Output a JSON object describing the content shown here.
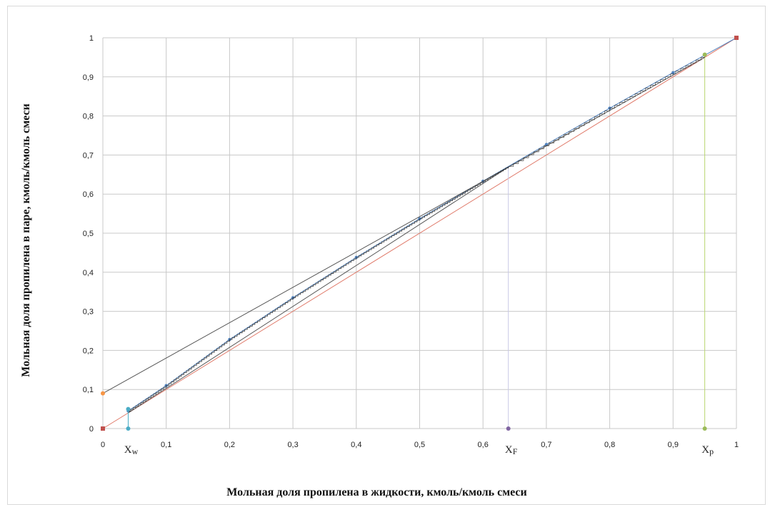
{
  "chart_data": {
    "type": "scatter",
    "title": "",
    "xlabel": "Мольная доля пропилена в жидкости, кмоль/кмоль смеси",
    "ylabel": "Мольная доля пропилена в паре, кмоль/кмоль смеси",
    "xlim": [
      0,
      1
    ],
    "ylim": [
      0,
      1
    ],
    "grid": true,
    "legend": "none",
    "x_ticks": [
      "0",
      "0,1",
      "0,2",
      "0,3",
      "0,4",
      "0,5",
      "0,6",
      "0,7",
      "0,8",
      "0,9",
      "1"
    ],
    "y_ticks": [
      "0",
      "0,1",
      "0,2",
      "0,3",
      "0,4",
      "0,5",
      "0,6",
      "0,7",
      "0,8",
      "0,9",
      "1"
    ],
    "x_tick_values": [
      0,
      0.1,
      0.2,
      0.3,
      0.4,
      0.5,
      0.6,
      0.7,
      0.8,
      0.9,
      1
    ],
    "y_tick_values": [
      0,
      0.1,
      0.2,
      0.3,
      0.4,
      0.5,
      0.6,
      0.7,
      0.8,
      0.9,
      1
    ],
    "series": [
      {
        "type": "line",
        "color": "#e07a6a",
        "points": [
          [
            0,
            0
          ],
          [
            1,
            1
          ]
        ]
      },
      {
        "type": "line",
        "color": "#4f81bd",
        "points": [
          [
            0.04,
            0.045
          ],
          [
            0.1,
            0.11
          ],
          [
            0.2,
            0.228
          ],
          [
            0.3,
            0.335
          ],
          [
            0.4,
            0.438
          ],
          [
            0.5,
            0.537
          ],
          [
            0.6,
            0.633
          ],
          [
            0.7,
            0.727
          ],
          [
            0.8,
            0.82
          ],
          [
            0.9,
            0.911
          ],
          [
            1,
            1
          ]
        ]
      },
      {
        "type": "line",
        "color": "#555555",
        "points": [
          [
            0,
            0.09
          ],
          [
            0.64,
            0.669
          ]
        ]
      },
      {
        "type": "line",
        "color": "#555555",
        "points": [
          [
            0.04,
            0.04
          ],
          [
            0.64,
            0.669
          ],
          [
            0.95,
            0.95
          ]
        ]
      },
      {
        "type": "line",
        "color": "#b9d66f",
        "points": [
          [
            0.95,
            0
          ],
          [
            0.95,
            0.95
          ]
        ]
      },
      {
        "type": "line",
        "color": "#c9c9e6",
        "points": [
          [
            0.64,
            0
          ],
          [
            0.64,
            0.669
          ]
        ]
      },
      {
        "type": "line",
        "color": "#4bacc6",
        "points": [
          [
            0.04,
            0
          ],
          [
            0.04,
            0.05
          ]
        ]
      }
    ],
    "points": [
      {
        "x": 0,
        "y": 0,
        "color": "#c0504d"
      },
      {
        "x": 1,
        "y": 1,
        "color": "#c0504d"
      },
      {
        "x": 0,
        "y": 0.09,
        "color": "#f79646"
      },
      {
        "x": 0.04,
        "y": 0,
        "color": "#4bacc6"
      },
      {
        "x": 0.04,
        "y": 0.05,
        "color": "#4bacc6"
      },
      {
        "x": 0.64,
        "y": 0,
        "color": "#8064a2"
      },
      {
        "x": 0.95,
        "y": 0,
        "color": "#9bbb59"
      },
      {
        "x": 0.95,
        "y": 0.957,
        "color": "#9bbb59"
      }
    ],
    "steps_between": {
      "x_from": 0.04,
      "x_to": 0.64,
      "color": "#333333"
    },
    "annotations": [
      {
        "text": "Xw",
        "x": 0.04
      },
      {
        "text": "XF",
        "x": 0.64
      },
      {
        "text": "Xp",
        "x": 0.95
      }
    ]
  }
}
